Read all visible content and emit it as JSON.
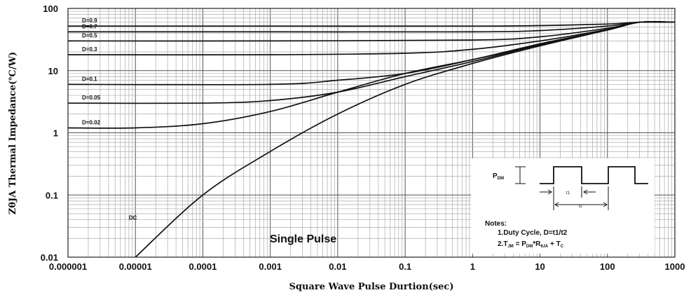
{
  "chart_data": {
    "type": "line",
    "xlabel": "Square Wave Pulse Durtion(sec)",
    "ylabel": "ZθJA Thermal Impedance(℃/W)",
    "xscale": "log",
    "yscale": "log",
    "xlim": [
      1e-06,
      1000
    ],
    "ylim": [
      0.01,
      100
    ],
    "x_tick_labels": [
      "0.000001",
      "0.00001",
      "0.0001",
      "0.001",
      "0.01",
      "0.1",
      "1",
      "10",
      "100",
      "1000"
    ],
    "y_tick_labels": [
      "0.01",
      "0.1",
      "1",
      "10",
      "100"
    ],
    "grid": true,
    "series": [
      {
        "name": "D=0.9",
        "x": [
          1e-06,
          0.001,
          1,
          10,
          100,
          300,
          1000
        ],
        "y": [
          52,
          52,
          52,
          53,
          56,
          60,
          60
        ]
      },
      {
        "name": "D=0.7",
        "x": [
          1e-06,
          0.001,
          1,
          10,
          100,
          300,
          1000
        ],
        "y": [
          42,
          42,
          42,
          44,
          52,
          60,
          60
        ]
      },
      {
        "name": "D=0.5",
        "x": [
          1e-06,
          0.001,
          1,
          10,
          100,
          300,
          1000
        ],
        "y": [
          30,
          30,
          31,
          35,
          48,
          60,
          60
        ]
      },
      {
        "name": "D=0.3",
        "x": [
          1e-06,
          0.001,
          0.1,
          1,
          10,
          100,
          300,
          1000
        ],
        "y": [
          18,
          18,
          19,
          22,
          30,
          46,
          60,
          60
        ]
      },
      {
        "name": "D=0.1",
        "x": [
          1e-06,
          0.001,
          0.01,
          0.1,
          1,
          10,
          100,
          300,
          1000
        ],
        "y": [
          6,
          6,
          7,
          9,
          15,
          27,
          45,
          60,
          60
        ]
      },
      {
        "name": "D=0.05",
        "x": [
          1e-06,
          0.0001,
          0.001,
          0.01,
          0.1,
          1,
          10,
          100,
          300,
          1000
        ],
        "y": [
          3,
          3,
          3.3,
          4.5,
          8,
          14,
          26,
          45,
          60,
          60
        ]
      },
      {
        "name": "D=0.02",
        "x": [
          1e-06,
          1e-05,
          0.0001,
          0.001,
          0.01,
          0.1,
          1,
          10,
          100,
          300,
          1000
        ],
        "y": [
          1.2,
          1.2,
          1.4,
          2.2,
          4.5,
          9,
          15,
          26,
          45,
          60,
          60
        ]
      },
      {
        "name": "DC",
        "x": [
          1e-05,
          0.0001,
          0.001,
          0.01,
          0.1,
          1,
          10,
          100,
          300,
          1000
        ],
        "y": [
          0.01,
          0.1,
          0.5,
          2,
          6,
          13,
          25,
          45,
          60,
          60
        ]
      }
    ],
    "annotations": {
      "single_pulse": "Single Pulse",
      "notes_title": "Notes:",
      "note1": "1.Duty  Cycle, D=t1/t2",
      "note2": "2.T",
      "note2_sub1": "JM",
      "note2_mid1": " = P",
      "note2_sub2": "DM",
      "note2_mid2": "*R",
      "note2_sub3": "θJA",
      "note2_mid3": " + T",
      "note2_sub4": "C",
      "pdm": "P",
      "pdm_sub": "DM",
      "t1": "t1",
      "t2": "t2"
    }
  }
}
